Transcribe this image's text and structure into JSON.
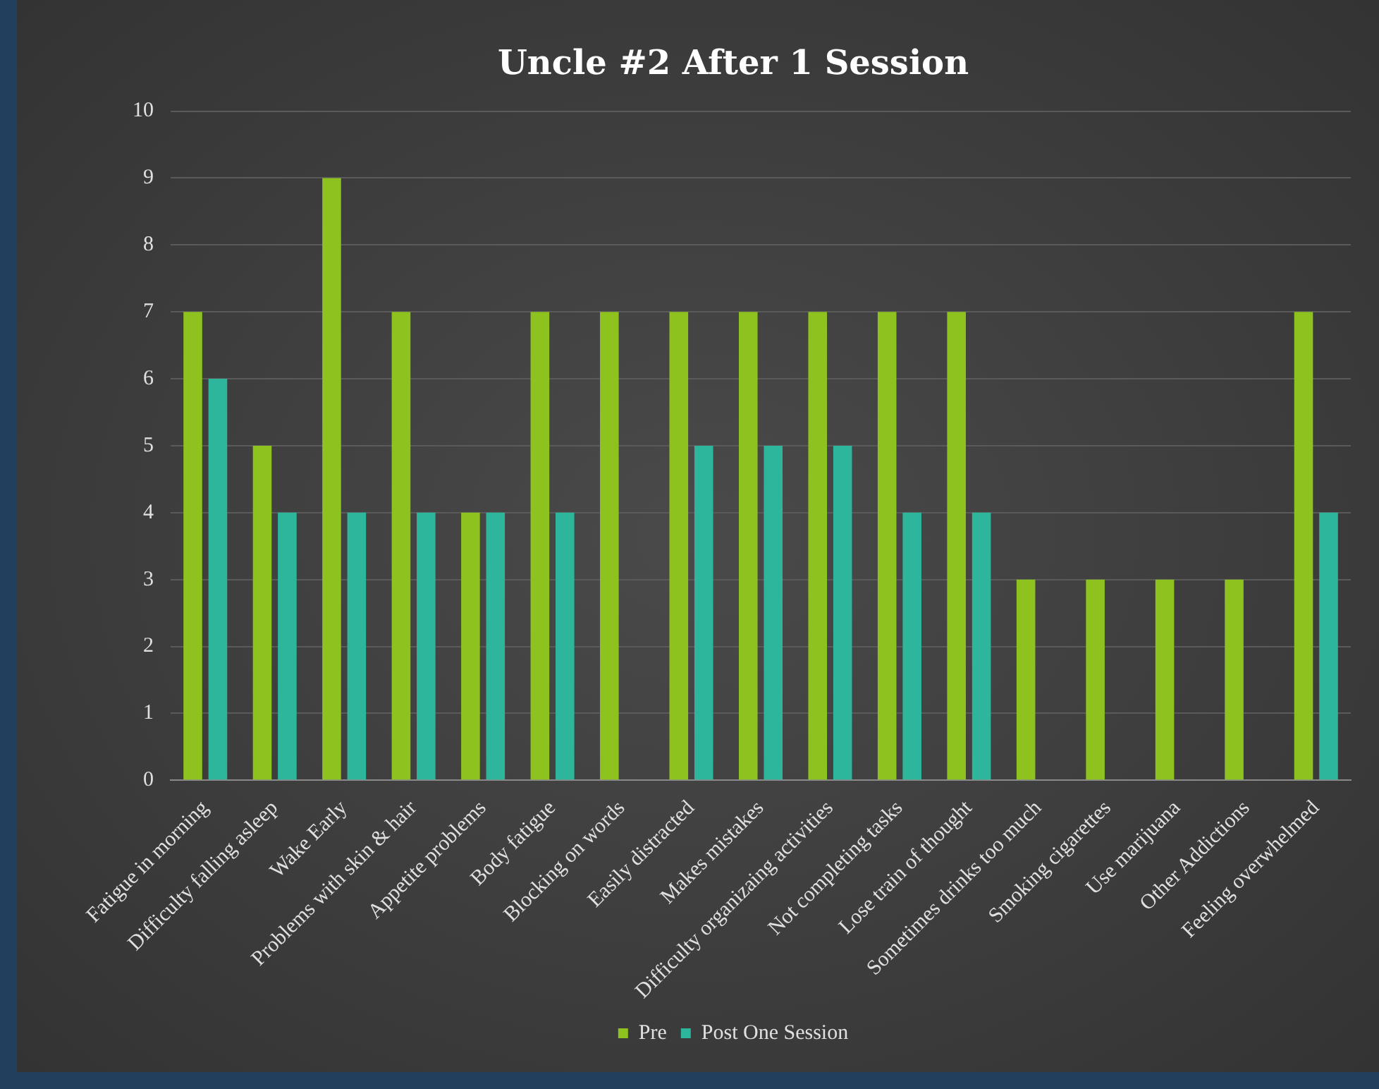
{
  "chart_data": {
    "type": "bar",
    "title": "Uncle #2 After 1 Session",
    "categories": [
      "Fatigue in morning",
      "Difficulty falling asleep",
      "Wake Early",
      "Problems with skin & hair",
      "Appetite problems",
      "Body fatigue",
      "Blocking on words",
      "Easily distracted",
      "Makes mistakes",
      "Difficulty organizaing activities",
      "Not completing tasks",
      "Lose train of thought",
      "Sometimes drinks too much",
      "Smoking cigarettes",
      "Use marijuana",
      "Other Addictions",
      "Feeling overwhelmed"
    ],
    "series": [
      {
        "name": "Pre",
        "color": "#8dc21f",
        "values": [
          7,
          5,
          9,
          7,
          4,
          7,
          7,
          7,
          7,
          7,
          7,
          7,
          3,
          3,
          3,
          3,
          7
        ]
      },
      {
        "name": "Post One Session",
        "color": "#2db69b",
        "values": [
          6,
          4,
          4,
          4,
          4,
          4,
          null,
          5,
          5,
          5,
          4,
          4,
          null,
          null,
          null,
          null,
          4
        ]
      }
    ],
    "ylim": [
      0,
      10
    ],
    "yticks": [
      0,
      1,
      2,
      3,
      4,
      5,
      6,
      7,
      8,
      9,
      10
    ],
    "grid": "y",
    "legend": "bottom"
  }
}
